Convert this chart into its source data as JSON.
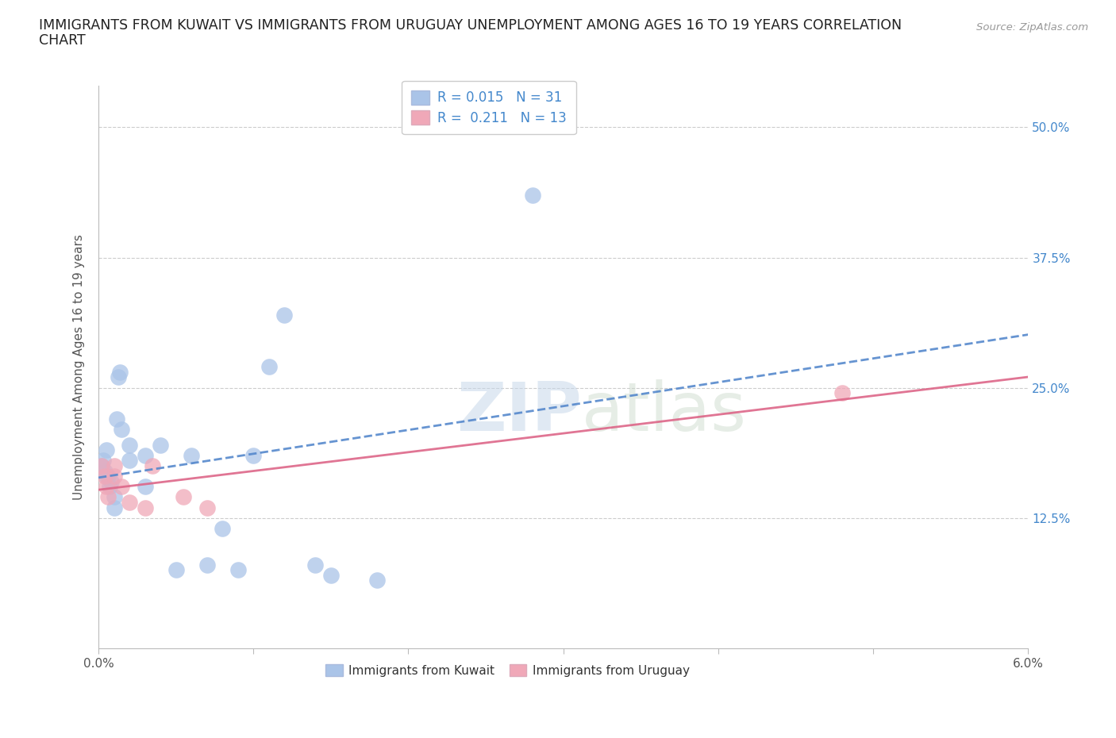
{
  "title_line1": "IMMIGRANTS FROM KUWAIT VS IMMIGRANTS FROM URUGUAY UNEMPLOYMENT AMONG AGES 16 TO 19 YEARS CORRELATION",
  "title_line2": "CHART",
  "source": "Source: ZipAtlas.com",
  "ylabel": "Unemployment Among Ages 16 to 19 years",
  "xlim": [
    0.0,
    0.06
  ],
  "ylim": [
    0.0,
    0.54
  ],
  "xticks": [
    0.0,
    0.01,
    0.02,
    0.03,
    0.04,
    0.05,
    0.06
  ],
  "xticklabels": [
    "0.0%",
    "",
    "",
    "",
    "",
    "",
    "6.0%"
  ],
  "yticks": [
    0.125,
    0.25,
    0.375,
    0.5
  ],
  "yticklabels": [
    "12.5%",
    "25.0%",
    "37.5%",
    "50.0%"
  ],
  "grid_color": "#cccccc",
  "background_color": "#ffffff",
  "kuwait_color": "#aac4e8",
  "uruguay_color": "#f0a8b8",
  "kuwait_line_color": "#5588cc",
  "uruguay_line_color": "#dd6688",
  "kuwait_R": 0.015,
  "kuwait_N": 31,
  "uruguay_R": 0.211,
  "uruguay_N": 13,
  "kuwait_x": [
    0.0002,
    0.0003,
    0.0004,
    0.0005,
    0.0005,
    0.0006,
    0.0007,
    0.0008,
    0.001,
    0.001,
    0.0012,
    0.0013,
    0.0014,
    0.0015,
    0.002,
    0.002,
    0.003,
    0.003,
    0.004,
    0.005,
    0.006,
    0.007,
    0.008,
    0.009,
    0.01,
    0.011,
    0.012,
    0.014,
    0.015,
    0.018,
    0.028
  ],
  "kuwait_y": [
    0.175,
    0.18,
    0.17,
    0.165,
    0.19,
    0.165,
    0.155,
    0.16,
    0.145,
    0.135,
    0.22,
    0.26,
    0.265,
    0.21,
    0.195,
    0.18,
    0.185,
    0.155,
    0.195,
    0.075,
    0.185,
    0.08,
    0.115,
    0.075,
    0.185,
    0.27,
    0.32,
    0.08,
    0.07,
    0.065,
    0.435
  ],
  "uruguay_x": [
    0.0002,
    0.0004,
    0.0005,
    0.0006,
    0.001,
    0.001,
    0.0015,
    0.002,
    0.003,
    0.0035,
    0.0055,
    0.007,
    0.048
  ],
  "uruguay_y": [
    0.175,
    0.165,
    0.155,
    0.145,
    0.175,
    0.165,
    0.155,
    0.14,
    0.135,
    0.175,
    0.145,
    0.135,
    0.245
  ],
  "watermark_zip": "ZIP",
  "watermark_atlas": "atlas",
  "title_fontsize": 12.5,
  "label_fontsize": 11,
  "tick_fontsize": 11,
  "legend_fontsize": 12
}
